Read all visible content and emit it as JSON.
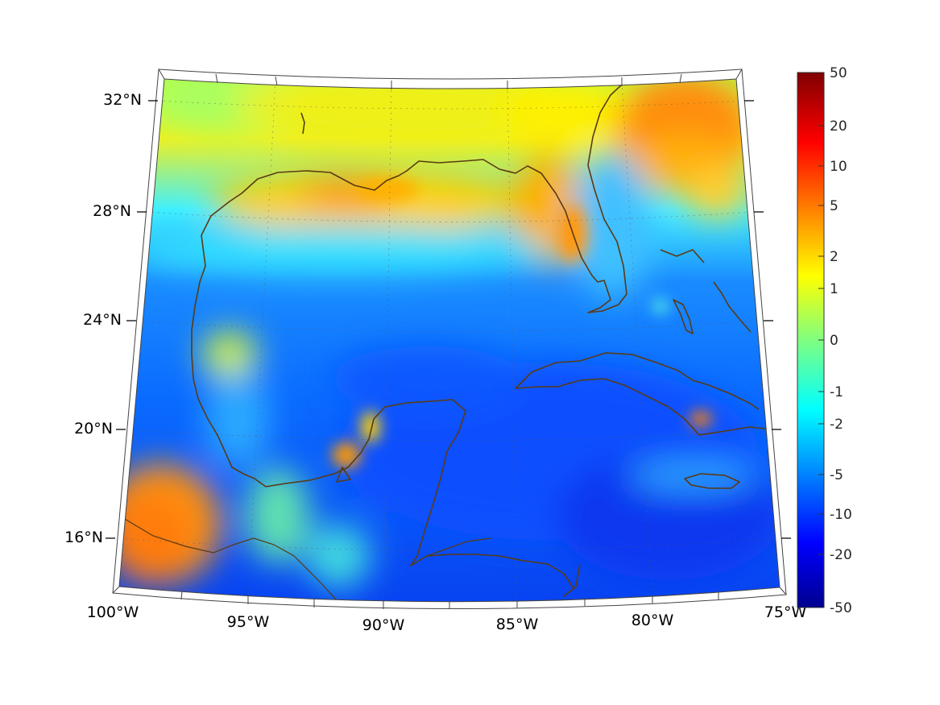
{
  "map": {
    "longitude_labels": [
      "100°W",
      "95°W",
      "90°W",
      "85°W",
      "80°W",
      "75°W"
    ],
    "latitude_labels": [
      "32°N",
      "28°N",
      "24°N",
      "20°N",
      "16°N"
    ]
  },
  "colorbar": {
    "tick_labels": [
      "50",
      "20",
      "10",
      "5",
      "2",
      "1",
      "0",
      "-1",
      "-2",
      "-5",
      "-10",
      "-20",
      "-50"
    ],
    "colormap": "jet",
    "low_color": "#00008f",
    "high_color": "#800000"
  }
}
